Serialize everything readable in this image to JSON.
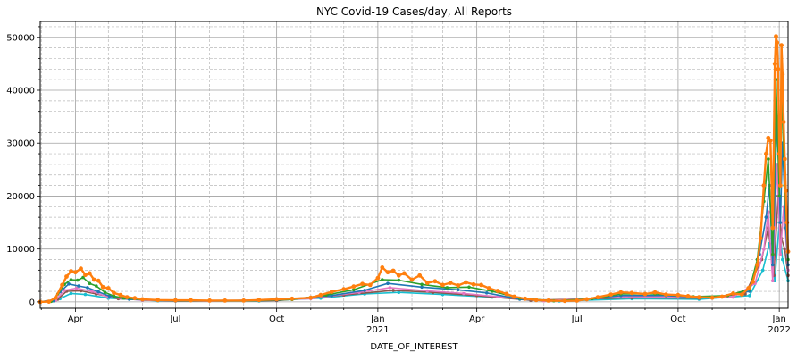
{
  "chart_data": {
    "type": "line",
    "title": "NYC Covid-19 Cases/day, All Reports",
    "xlabel": "DATE_OF_INTEREST",
    "ylabel": "",
    "ylim": [
      -1200,
      53000
    ],
    "xlim": [
      "2020-02-29",
      "2022-01-09"
    ],
    "grid": {
      "major": true,
      "minor": true
    },
    "legend": "none",
    "x_ticks": [
      {
        "date": "2020-04-01",
        "label": "Apr",
        "sublabel": ""
      },
      {
        "date": "2020-07-01",
        "label": "Jul",
        "sublabel": ""
      },
      {
        "date": "2020-10-01",
        "label": "Oct",
        "sublabel": ""
      },
      {
        "date": "2021-01-01",
        "label": "Jan",
        "sublabel": "2021"
      },
      {
        "date": "2021-04-01",
        "label": "Apr",
        "sublabel": ""
      },
      {
        "date": "2021-07-01",
        "label": "Jul",
        "sublabel": ""
      },
      {
        "date": "2021-10-01",
        "label": "Oct",
        "sublabel": ""
      },
      {
        "date": "2022-01-01",
        "label": "Jan",
        "sublabel": "2022"
      }
    ],
    "y_ticks": [
      0,
      10000,
      20000,
      30000,
      40000,
      50000
    ],
    "series": [
      {
        "color": "#ff7f0e",
        "points": [
          [
            "2020-02-29",
            0
          ],
          [
            "2020-03-08",
            50
          ],
          [
            "2020-03-14",
            800
          ],
          [
            "2020-03-20",
            3200
          ],
          [
            "2020-03-24",
            4800
          ],
          [
            "2020-03-28",
            5800
          ],
          [
            "2020-04-01",
            5600
          ],
          [
            "2020-04-06",
            6300
          ],
          [
            "2020-04-10",
            5100
          ],
          [
            "2020-04-14",
            5400
          ],
          [
            "2020-04-18",
            4200
          ],
          [
            "2020-04-22",
            4000
          ],
          [
            "2020-04-26",
            2800
          ],
          [
            "2020-05-01",
            2600
          ],
          [
            "2020-05-06",
            1700
          ],
          [
            "2020-05-12",
            1300
          ],
          [
            "2020-05-18",
            900
          ],
          [
            "2020-05-25",
            700
          ],
          [
            "2020-06-01",
            500
          ],
          [
            "2020-06-15",
            350
          ],
          [
            "2020-07-01",
            300
          ],
          [
            "2020-07-15",
            300
          ],
          [
            "2020-08-01",
            250
          ],
          [
            "2020-08-15",
            250
          ],
          [
            "2020-09-01",
            250
          ],
          [
            "2020-09-15",
            350
          ],
          [
            "2020-10-01",
            500
          ],
          [
            "2020-10-15",
            600
          ],
          [
            "2020-11-01",
            800
          ],
          [
            "2020-11-10",
            1300
          ],
          [
            "2020-11-20",
            1900
          ],
          [
            "2020-12-01",
            2400
          ],
          [
            "2020-12-10",
            2900
          ],
          [
            "2020-12-18",
            3400
          ],
          [
            "2020-12-25",
            3200
          ],
          [
            "2021-01-01",
            4500
          ],
          [
            "2021-01-05",
            6500
          ],
          [
            "2021-01-10",
            5600
          ],
          [
            "2021-01-15",
            5900
          ],
          [
            "2021-01-20",
            5000
          ],
          [
            "2021-01-25",
            5400
          ],
          [
            "2021-02-01",
            4200
          ],
          [
            "2021-02-08",
            5000
          ],
          [
            "2021-02-15",
            3600
          ],
          [
            "2021-02-22",
            3900
          ],
          [
            "2021-03-01",
            3200
          ],
          [
            "2021-03-08",
            3600
          ],
          [
            "2021-03-15",
            3100
          ],
          [
            "2021-03-22",
            3700
          ],
          [
            "2021-03-29",
            3300
          ],
          [
            "2021-04-05",
            3200
          ],
          [
            "2021-04-12",
            2600
          ],
          [
            "2021-04-20",
            2100
          ],
          [
            "2021-04-28",
            1500
          ],
          [
            "2021-05-05",
            1000
          ],
          [
            "2021-05-15",
            600
          ],
          [
            "2021-05-25",
            350
          ],
          [
            "2021-06-05",
            250
          ],
          [
            "2021-06-20",
            180
          ],
          [
            "2021-07-01",
            250
          ],
          [
            "2021-07-10",
            500
          ],
          [
            "2021-07-20",
            900
          ],
          [
            "2021-08-01",
            1400
          ],
          [
            "2021-08-10",
            1800
          ],
          [
            "2021-08-20",
            1700
          ],
          [
            "2021-09-01",
            1500
          ],
          [
            "2021-09-10",
            1800
          ],
          [
            "2021-09-20",
            1400
          ],
          [
            "2021-10-01",
            1300
          ],
          [
            "2021-10-10",
            1100
          ],
          [
            "2021-10-20",
            900
          ],
          [
            "2021-11-01",
            800
          ],
          [
            "2021-11-10",
            1000
          ],
          [
            "2021-11-20",
            1600
          ],
          [
            "2021-11-28",
            1400
          ],
          [
            "2021-12-04",
            2600
          ],
          [
            "2021-12-08",
            3800
          ],
          [
            "2021-12-12",
            7000
          ],
          [
            "2021-12-15",
            12000
          ],
          [
            "2021-12-18",
            22000
          ],
          [
            "2021-12-20",
            28000
          ],
          [
            "2021-12-22",
            31000
          ],
          [
            "2021-12-24",
            30500
          ],
          [
            "2021-12-26",
            14000
          ],
          [
            "2021-12-28",
            45000
          ],
          [
            "2021-12-29",
            50200
          ],
          [
            "2021-12-30",
            49000
          ],
          [
            "2021-12-31",
            44000
          ],
          [
            "2022-01-01",
            28000
          ],
          [
            "2022-01-02",
            22000
          ],
          [
            "2022-01-03",
            48500
          ],
          [
            "2022-01-04",
            43000
          ],
          [
            "2022-01-05",
            34000
          ],
          [
            "2022-01-06",
            27000
          ],
          [
            "2022-01-07",
            21000
          ],
          [
            "2022-01-08",
            15000
          ],
          [
            "2022-01-09",
            9500
          ]
        ]
      },
      {
        "color": "#2ca02c",
        "points": [
          [
            "2020-02-29",
            0
          ],
          [
            "2020-03-10",
            100
          ],
          [
            "2020-03-16",
            1500
          ],
          [
            "2020-03-22",
            3300
          ],
          [
            "2020-03-28",
            4200
          ],
          [
            "2020-04-03",
            4100
          ],
          [
            "2020-04-08",
            4600
          ],
          [
            "2020-04-14",
            3500
          ],
          [
            "2020-04-20",
            3000
          ],
          [
            "2020-04-28",
            1800
          ],
          [
            "2020-05-06",
            1100
          ],
          [
            "2020-05-15",
            700
          ],
          [
            "2020-06-01",
            400
          ],
          [
            "2020-07-01",
            250
          ],
          [
            "2020-09-01",
            200
          ],
          [
            "2020-10-15",
            450
          ],
          [
            "2020-11-15",
            1300
          ],
          [
            "2020-12-10",
            2300
          ],
          [
            "2021-01-05",
            4200
          ],
          [
            "2021-01-20",
            4100
          ],
          [
            "2021-02-10",
            3300
          ],
          [
            "2021-03-05",
            2700
          ],
          [
            "2021-03-25",
            2800
          ],
          [
            "2021-04-15",
            2000
          ],
          [
            "2021-05-10",
            700
          ],
          [
            "2021-06-10",
            200
          ],
          [
            "2021-07-15",
            600
          ],
          [
            "2021-08-10",
            1500
          ],
          [
            "2021-09-10",
            1500
          ],
          [
            "2021-10-15",
            1000
          ],
          [
            "2021-11-15",
            1200
          ],
          [
            "2021-12-05",
            2400
          ],
          [
            "2021-12-12",
            8000
          ],
          [
            "2021-12-18",
            19000
          ],
          [
            "2021-12-22",
            27000
          ],
          [
            "2021-12-26",
            9000
          ],
          [
            "2021-12-29",
            42000
          ],
          [
            "2022-01-01",
            20000
          ],
          [
            "2022-01-03",
            40000
          ],
          [
            "2022-01-06",
            22000
          ],
          [
            "2022-01-09",
            8000
          ]
        ]
      },
      {
        "color": "#1f77b4",
        "points": [
          [
            "2020-02-29",
            0
          ],
          [
            "2020-03-12",
            200
          ],
          [
            "2020-03-18",
            1900
          ],
          [
            "2020-03-26",
            3400
          ],
          [
            "2020-04-04",
            3000
          ],
          [
            "2020-04-12",
            2700
          ],
          [
            "2020-04-22",
            1900
          ],
          [
            "2020-05-02",
            1100
          ],
          [
            "2020-05-20",
            500
          ],
          [
            "2020-07-01",
            200
          ],
          [
            "2020-10-01",
            350
          ],
          [
            "2020-11-20",
            1200
          ],
          [
            "2020-12-20",
            2200
          ],
          [
            "2021-01-10",
            3500
          ],
          [
            "2021-02-10",
            2800
          ],
          [
            "2021-03-15",
            2300
          ],
          [
            "2021-04-10",
            1700
          ],
          [
            "2021-05-10",
            500
          ],
          [
            "2021-06-20",
            150
          ],
          [
            "2021-08-10",
            1200
          ],
          [
            "2021-09-20",
            1200
          ],
          [
            "2021-11-01",
            700
          ],
          [
            "2021-12-05",
            2000
          ],
          [
            "2021-12-14",
            9000
          ],
          [
            "2021-12-20",
            16000
          ],
          [
            "2021-12-23",
            22000
          ],
          [
            "2021-12-26",
            7000
          ],
          [
            "2021-12-30",
            35000
          ],
          [
            "2022-01-02",
            15000
          ],
          [
            "2022-01-04",
            30000
          ],
          [
            "2022-01-07",
            14000
          ],
          [
            "2022-01-09",
            7000
          ]
        ]
      },
      {
        "color": "#e377c2",
        "points": [
          [
            "2020-02-29",
            0
          ],
          [
            "2020-03-14",
            300
          ],
          [
            "2020-03-22",
            2200
          ],
          [
            "2020-04-02",
            2600
          ],
          [
            "2020-04-16",
            2000
          ],
          [
            "2020-05-01",
            900
          ],
          [
            "2020-06-01",
            300
          ],
          [
            "2020-08-01",
            150
          ],
          [
            "2020-11-01",
            600
          ],
          [
            "2020-12-15",
            1800
          ],
          [
            "2021-01-12",
            2700
          ],
          [
            "2021-02-15",
            2100
          ],
          [
            "2021-03-20",
            1600
          ],
          [
            "2021-04-20",
            1000
          ],
          [
            "2021-06-01",
            200
          ],
          [
            "2021-08-15",
            1000
          ],
          [
            "2021-10-01",
            900
          ],
          [
            "2021-11-20",
            900
          ],
          [
            "2021-12-10",
            3500
          ],
          [
            "2021-12-18",
            10000
          ],
          [
            "2021-12-22",
            17000
          ],
          [
            "2021-12-26",
            4000
          ],
          [
            "2021-12-30",
            26000
          ],
          [
            "2022-01-02",
            9000
          ],
          [
            "2022-01-05",
            18000
          ],
          [
            "2022-01-09",
            6000
          ]
        ]
      },
      {
        "color": "#8c564b",
        "points": [
          [
            "2020-02-29",
            0
          ],
          [
            "2020-03-16",
            500
          ],
          [
            "2020-03-24",
            2000
          ],
          [
            "2020-04-06",
            2100
          ],
          [
            "2020-04-20",
            1500
          ],
          [
            "2020-05-10",
            600
          ],
          [
            "2020-07-01",
            150
          ],
          [
            "2020-10-01",
            250
          ],
          [
            "2020-12-01",
            1300
          ],
          [
            "2021-01-15",
            2200
          ],
          [
            "2021-02-20",
            1800
          ],
          [
            "2021-04-01",
            1200
          ],
          [
            "2021-05-20",
            300
          ],
          [
            "2021-08-20",
            800
          ],
          [
            "2021-10-20",
            700
          ],
          [
            "2021-12-01",
            1500
          ],
          [
            "2021-12-16",
            8000
          ],
          [
            "2021-12-22",
            14000
          ],
          [
            "2021-12-27",
            5000
          ],
          [
            "2021-12-31",
            20000
          ],
          [
            "2022-01-03",
            12000
          ],
          [
            "2022-01-06",
            10000
          ],
          [
            "2022-01-09",
            5000
          ]
        ]
      },
      {
        "color": "#17becf",
        "points": [
          [
            "2020-02-29",
            0
          ],
          [
            "2020-03-18",
            600
          ],
          [
            "2020-03-28",
            1600
          ],
          [
            "2020-04-10",
            1400
          ],
          [
            "2020-05-01",
            700
          ],
          [
            "2020-06-15",
            200
          ],
          [
            "2020-09-15",
            150
          ],
          [
            "2020-11-10",
            700
          ],
          [
            "2020-12-20",
            1500
          ],
          [
            "2021-01-20",
            1800
          ],
          [
            "2021-03-01",
            1400
          ],
          [
            "2021-04-15",
            900
          ],
          [
            "2021-06-15",
            150
          ],
          [
            "2021-08-20",
            600
          ],
          [
            "2021-10-20",
            500
          ],
          [
            "2021-12-05",
            1200
          ],
          [
            "2021-12-17",
            6000
          ],
          [
            "2021-12-23",
            11000
          ],
          [
            "2021-12-28",
            4000
          ],
          [
            "2022-01-01",
            15000
          ],
          [
            "2022-01-04",
            8000
          ],
          [
            "2022-01-09",
            4000
          ]
        ]
      }
    ]
  }
}
